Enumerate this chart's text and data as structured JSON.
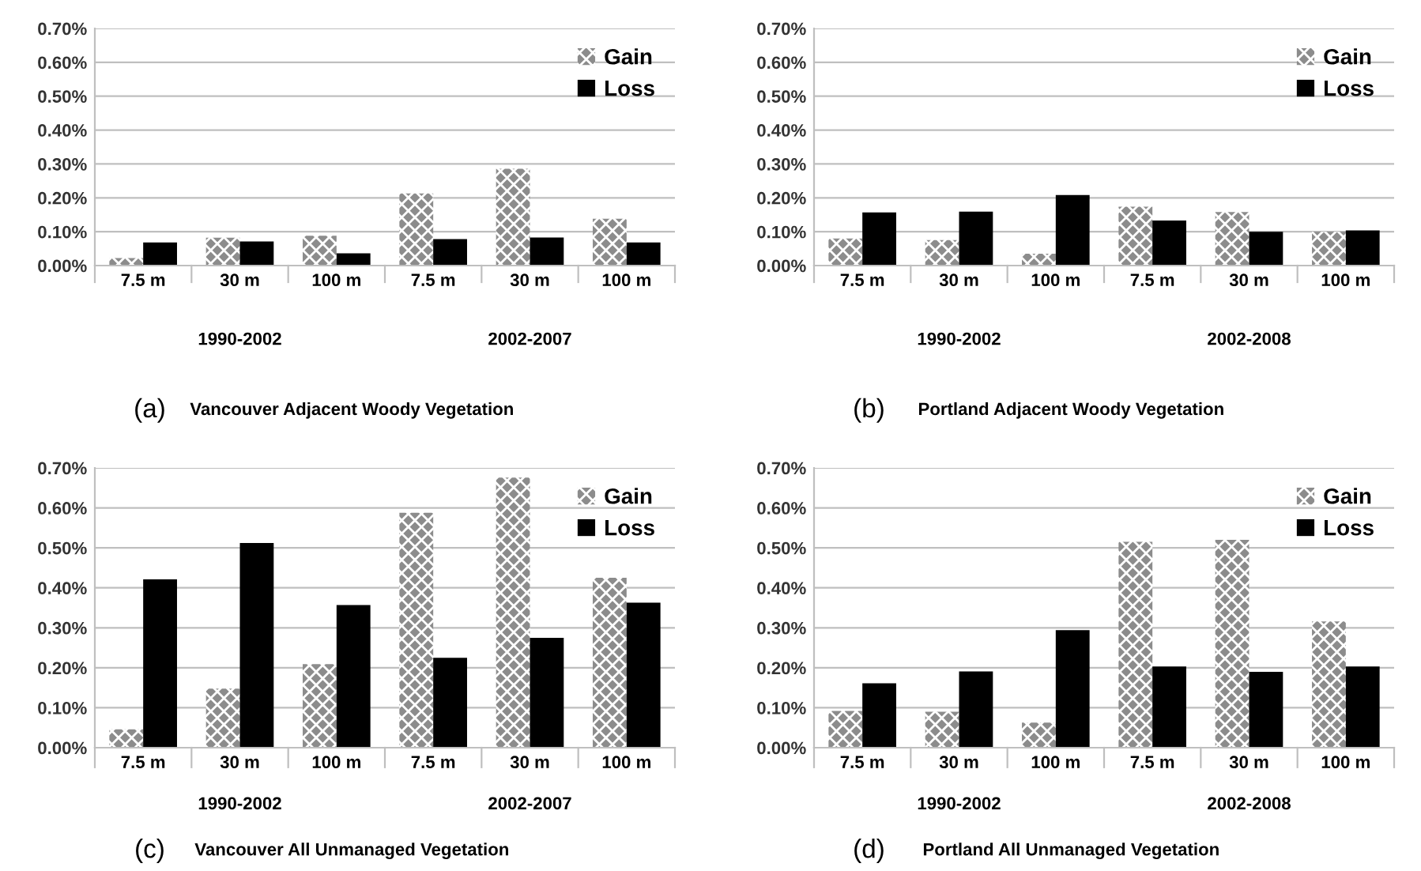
{
  "chart_data": [
    {
      "type": "bar",
      "title": "Vancouver Adjacent Woody Vegetation",
      "annotations": [
        "1990-2002",
        "2002-2007",
        "(a)"
      ],
      "categories": [
        "7.5 m",
        "30 m",
        "100 m",
        "7.5 m",
        "30 m",
        "100 m"
      ],
      "series": [
        {
          "name": "Gain",
          "color": "#8c8c8c",
          "values": [
            0.022,
            0.082,
            0.088,
            0.213,
            0.286,
            0.138
          ]
        },
        {
          "name": "Loss",
          "color": "#000000",
          "values": [
            0.068,
            0.071,
            0.036,
            0.078,
            0.083,
            0.068
          ]
        }
      ],
      "ylim": [
        0,
        0.7
      ],
      "yticks": [
        {
          "value": 0,
          "label": "0.00%"
        },
        {
          "value": 0.1,
          "label": "0.10%"
        },
        {
          "value": 0.2,
          "label": "0.20%"
        },
        {
          "value": 0.3,
          "label": "0.30%"
        },
        {
          "value": 0.4,
          "label": "0.40%"
        },
        {
          "value": 0.5,
          "label": "0.50%"
        },
        {
          "value": 0.6,
          "label": "0.60%"
        },
        {
          "value": 0.7,
          "label": "0.70%"
        }
      ],
      "grid": "y",
      "legend": "top right"
    },
    {
      "type": "bar",
      "title": "Portland Adjacent Woody Vegetation",
      "annotations": [
        "1990-2002",
        "2002-2008",
        "(b)"
      ],
      "categories": [
        "7.5 m",
        "30 m",
        "100 m",
        "7.5 m",
        "30 m",
        "100 m"
      ],
      "series": [
        {
          "name": "Gain",
          "color": "#8c8c8c",
          "values": [
            0.08,
            0.075,
            0.035,
            0.174,
            0.158,
            0.1
          ]
        },
        {
          "name": "Loss",
          "color": "#000000",
          "values": [
            0.157,
            0.159,
            0.208,
            0.133,
            0.1,
            0.104
          ]
        }
      ],
      "ylim": [
        0,
        0.7
      ],
      "yticks": [
        {
          "value": 0,
          "label": "0.00%"
        },
        {
          "value": 0.1,
          "label": "0.10%"
        },
        {
          "value": 0.2,
          "label": "0.20%"
        },
        {
          "value": 0.3,
          "label": "0.30%"
        },
        {
          "value": 0.4,
          "label": "0.40%"
        },
        {
          "value": 0.5,
          "label": "0.50%"
        },
        {
          "value": 0.6,
          "label": "0.60%"
        },
        {
          "value": 0.7,
          "label": "0.70%"
        }
      ],
      "grid": "y",
      "legend": "top right"
    },
    {
      "type": "bar",
      "title": "Vancouver All Unmanaged Vegetation",
      "annotations": [
        "1990-2002",
        "2002-2007",
        "(c)"
      ],
      "categories": [
        "7.5 m",
        "30 m",
        "100 m",
        "7.5 m",
        "30 m",
        "100 m"
      ],
      "series": [
        {
          "name": "Gain",
          "color": "#8c8c8c",
          "values": [
            0.046,
            0.148,
            0.209,
            0.588,
            0.676,
            0.425
          ]
        },
        {
          "name": "Loss",
          "color": "#000000",
          "values": [
            0.421,
            0.512,
            0.357,
            0.225,
            0.275,
            0.363
          ]
        }
      ],
      "ylim": [
        0,
        0.7
      ],
      "yticks": [
        {
          "value": 0,
          "label": "0.00%"
        },
        {
          "value": 0.1,
          "label": "0.10%"
        },
        {
          "value": 0.2,
          "label": "0.20%"
        },
        {
          "value": 0.3,
          "label": "0.30%"
        },
        {
          "value": 0.4,
          "label": "0.40%"
        },
        {
          "value": 0.5,
          "label": "0.50%"
        },
        {
          "value": 0.6,
          "label": "0.60%"
        },
        {
          "value": 0.7,
          "label": "0.70%"
        }
      ],
      "grid": "y",
      "legend": "top right"
    },
    {
      "type": "bar",
      "title": "Portland All Unmanaged Vegetation",
      "annotations": [
        "1990-2002",
        "2002-2008",
        "(d)"
      ],
      "categories": [
        "7.5 m",
        "30 m",
        "100 m",
        "7.5 m",
        "30 m",
        "100 m"
      ],
      "series": [
        {
          "name": "Gain",
          "color": "#8c8c8c",
          "values": [
            0.092,
            0.09,
            0.063,
            0.515,
            0.52,
            0.316
          ]
        },
        {
          "name": "Loss",
          "color": "#000000",
          "values": [
            0.161,
            0.191,
            0.294,
            0.203,
            0.19,
            0.203
          ]
        }
      ],
      "ylim": [
        0,
        0.7
      ],
      "yticks": [
        {
          "value": 0,
          "label": "0.00%"
        },
        {
          "value": 0.1,
          "label": "0.10%"
        },
        {
          "value": 0.2,
          "label": "0.20%"
        },
        {
          "value": 0.3,
          "label": "0.30%"
        },
        {
          "value": 0.4,
          "label": "0.40%"
        },
        {
          "value": 0.5,
          "label": "0.50%"
        },
        {
          "value": 0.6,
          "label": "0.60%"
        },
        {
          "value": 0.7,
          "label": "0.70%"
        }
      ],
      "grid": "y",
      "legend": "top right"
    }
  ]
}
